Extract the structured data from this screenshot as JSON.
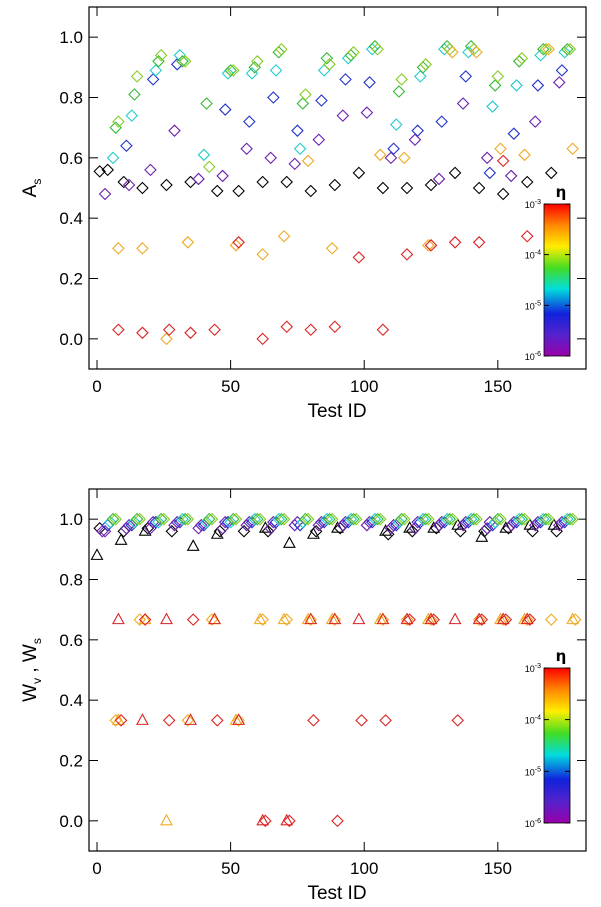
{
  "chart_data": [
    {
      "type": "scatter",
      "xlabel_main": "Test ID",
      "ylabel_main": "A",
      "ylabel_sub": "s",
      "xlim": [
        -3,
        183
      ],
      "ylim": [
        -0.1,
        1.1
      ],
      "xticks": [
        0,
        50,
        100,
        150
      ],
      "yticks": [
        0.0,
        0.2,
        0.4,
        0.6,
        0.8,
        1.0
      ],
      "colorbar": {
        "title": "η",
        "ticks": [
          {
            "base": "10",
            "exp": "-3",
            "frac": 0.0
          },
          {
            "base": "10",
            "exp": "-4",
            "frac": 0.333
          },
          {
            "base": "10",
            "exp": "-5",
            "frac": 0.667
          },
          {
            "base": "10",
            "exp": "-6",
            "frac": 1.0
          }
        ]
      },
      "series": [
        {
          "marker": "diamond",
          "color": "#000000",
          "x": [
            1,
            4,
            10,
            17,
            26,
            35,
            45,
            53,
            62,
            71,
            80,
            89,
            98,
            107,
            116,
            125,
            134,
            143,
            152,
            161,
            170
          ],
          "y": [
            0.555,
            0.56,
            0.52,
            0.5,
            0.51,
            0.52,
            0.49,
            0.49,
            0.52,
            0.52,
            0.49,
            0.51,
            0.55,
            0.5,
            0.5,
            0.51,
            0.55,
            0.5,
            0.48,
            0.52,
            0.55
          ]
        },
        {
          "marker": "diamond",
          "color": "#6a1fb0",
          "x": [
            3,
            12,
            20,
            29,
            38,
            47,
            56,
            65,
            74,
            83,
            92,
            101,
            110,
            119,
            128,
            137,
            146,
            155,
            164,
            173
          ],
          "y": [
            0.48,
            0.51,
            0.56,
            0.69,
            0.53,
            0.54,
            0.63,
            0.6,
            0.58,
            0.66,
            0.74,
            0.75,
            0.6,
            0.66,
            0.53,
            0.78,
            0.6,
            0.54,
            0.72,
            0.85
          ]
        },
        {
          "marker": "diamond",
          "color": "#2233cc",
          "x": [
            11,
            21,
            30,
            48,
            57,
            66,
            75,
            84,
            93,
            102,
            111,
            120,
            129,
            138,
            147,
            156,
            165,
            174
          ],
          "y": [
            0.64,
            0.86,
            0.91,
            0.76,
            0.72,
            0.8,
            0.69,
            0.79,
            0.86,
            0.85,
            0.63,
            0.69,
            0.72,
            0.87,
            0.55,
            0.68,
            0.84,
            0.89
          ]
        },
        {
          "marker": "diamond",
          "color": "#22cccc",
          "x": [
            6,
            13,
            22,
            31,
            40,
            49,
            58,
            67,
            76,
            85,
            94,
            103,
            112,
            121,
            130,
            139,
            148,
            157,
            166,
            175
          ],
          "y": [
            0.6,
            0.74,
            0.89,
            0.94,
            0.61,
            0.88,
            0.88,
            0.89,
            0.63,
            0.89,
            0.93,
            0.96,
            0.71,
            0.87,
            0.96,
            0.95,
            0.77,
            0.84,
            0.94,
            0.95
          ]
        },
        {
          "marker": "diamond",
          "color": "#33bb33",
          "x": [
            7,
            14,
            23,
            32,
            41,
            50,
            59,
            68,
            77,
            86,
            95,
            104,
            113,
            122,
            131,
            140,
            149,
            158,
            167,
            176
          ],
          "y": [
            0.7,
            0.81,
            0.92,
            0.92,
            0.78,
            0.89,
            0.9,
            0.95,
            0.78,
            0.93,
            0.94,
            0.97,
            0.82,
            0.9,
            0.97,
            0.97,
            0.84,
            0.92,
            0.96,
            0.96
          ]
        },
        {
          "marker": "diamond",
          "color": "#88cc22",
          "x": [
            8,
            15,
            24,
            33,
            42,
            51,
            60,
            69,
            78,
            87,
            96,
            105,
            114,
            123,
            132,
            141,
            150,
            159,
            168,
            177
          ],
          "y": [
            0.72,
            0.87,
            0.94,
            0.92,
            0.57,
            0.89,
            0.92,
            0.96,
            0.81,
            0.91,
            0.95,
            0.96,
            0.86,
            0.91,
            0.96,
            0.96,
            0.87,
            0.93,
            0.96,
            0.96
          ]
        },
        {
          "marker": "diamond",
          "color": "#eeaa22",
          "x": [
            8,
            17,
            26,
            34,
            52,
            62,
            70,
            79,
            88,
            106,
            115,
            124,
            133,
            142,
            151,
            160,
            169,
            178
          ],
          "y": [
            0.3,
            0.3,
            0.0,
            0.32,
            0.31,
            0.28,
            0.34,
            0.59,
            0.3,
            0.61,
            0.6,
            0.31,
            0.95,
            0.95,
            0.63,
            0.61,
            0.96,
            0.63
          ]
        },
        {
          "marker": "diamond",
          "color": "#dd2222",
          "x": [
            8,
            17,
            27,
            35,
            44,
            53,
            62,
            71,
            80,
            89,
            98,
            107,
            116,
            125,
            134,
            143,
            152,
            161
          ],
          "y": [
            0.03,
            0.02,
            0.03,
            0.02,
            0.03,
            0.32,
            0.0,
            0.04,
            0.03,
            0.04,
            0.27,
            0.03,
            0.28,
            0.31,
            0.32,
            0.32,
            0.59,
            0.34
          ]
        }
      ]
    },
    {
      "type": "scatter",
      "xlabel_main": "Test ID",
      "ylabel_main": "W",
      "ylabel_sub1": "v",
      "ylabel_mid": " , W",
      "ylabel_sub2": "s",
      "xlim": [
        -3,
        183
      ],
      "ylim": [
        -0.1,
        1.1
      ],
      "xticks": [
        0,
        50,
        100,
        150
      ],
      "yticks": [
        0.0,
        0.2,
        0.4,
        0.6,
        0.8,
        1.0
      ],
      "colorbar": {
        "title": "η",
        "ticks": [
          {
            "base": "10",
            "exp": "-3",
            "frac": 0.0
          },
          {
            "base": "10",
            "exp": "-4",
            "frac": 0.333
          },
          {
            "base": "10",
            "exp": "-5",
            "frac": 0.667
          },
          {
            "base": "10",
            "exp": "-6",
            "frac": 1.0
          }
        ]
      },
      "series": [
        {
          "marker": "triangle",
          "color": "#000000",
          "x": [
            0,
            9,
            18,
            36,
            45,
            63,
            72,
            81,
            90,
            108,
            117,
            126,
            135,
            144,
            153,
            162,
            171
          ],
          "y": [
            0.88,
            0.93,
            0.96,
            0.91,
            0.95,
            0.97,
            0.92,
            0.95,
            0.97,
            0.96,
            0.97,
            0.97,
            0.98,
            0.94,
            0.97,
            0.98,
            0.98
          ]
        },
        {
          "marker": "diamond",
          "color": "#000000",
          "x": [
            1,
            10,
            19,
            28,
            46,
            55,
            64,
            82,
            91,
            109,
            118,
            127,
            136,
            145,
            154,
            163,
            172
          ],
          "y": [
            0.97,
            0.96,
            0.97,
            0.96,
            0.96,
            0.96,
            0.96,
            0.96,
            0.97,
            0.95,
            0.96,
            0.97,
            0.96,
            0.96,
            0.97,
            0.96,
            0.96
          ]
        },
        {
          "marker": "diamond",
          "color": "#6a1fb0",
          "x": [
            2,
            3,
            11,
            12,
            20,
            21,
            29,
            30,
            38,
            39,
            47,
            48,
            56,
            57,
            65,
            66,
            74,
            75,
            83,
            84,
            92,
            93,
            101,
            102,
            110,
            111,
            119,
            120,
            128,
            129,
            137,
            138,
            146,
            147,
            155,
            156,
            164,
            165,
            173,
            174
          ],
          "y": [
            0.96,
            0.96,
            0.97,
            0.98,
            0.97,
            0.99,
            0.98,
            0.99,
            0.97,
            0.98,
            0.97,
            0.99,
            0.98,
            0.99,
            0.97,
            0.99,
            0.98,
            0.99,
            0.98,
            0.99,
            0.98,
            0.99,
            0.98,
            0.99,
            0.97,
            0.98,
            0.97,
            0.99,
            0.98,
            0.99,
            0.98,
            0.99,
            0.97,
            0.99,
            0.98,
            0.99,
            0.98,
            0.99,
            0.98,
            0.99
          ]
        },
        {
          "marker": "diamond",
          "color": "#2233cc",
          "x": [
            4,
            13,
            22,
            31,
            40,
            49,
            58,
            67,
            76,
            85,
            94,
            103,
            112,
            121,
            130,
            139,
            148,
            157,
            166,
            175
          ],
          "y": [
            0.98,
            0.98,
            0.99,
            0.99,
            0.98,
            0.99,
            0.99,
            0.99,
            0.98,
            0.99,
            0.99,
            0.99,
            0.98,
            0.99,
            0.99,
            0.99,
            0.98,
            0.99,
            0.99,
            0.99
          ]
        },
        {
          "marker": "diamond",
          "color": "#22cccc",
          "x": [
            5,
            14,
            23,
            32,
            41,
            50,
            59,
            68,
            77,
            86,
            95,
            104,
            113,
            122,
            131,
            140,
            149,
            158,
            167,
            176
          ],
          "y": [
            0.99,
            0.99,
            0.99,
            1.0,
            0.99,
            0.99,
            1.0,
            1.0,
            0.99,
            1.0,
            1.0,
            1.0,
            0.99,
            1.0,
            1.0,
            1.0,
            0.99,
            1.0,
            1.0,
            1.0
          ]
        },
        {
          "marker": "diamond",
          "color": "#33bb33",
          "x": [
            6,
            15,
            24,
            33,
            42,
            51,
            60,
            69,
            78,
            87,
            96,
            105,
            114,
            123,
            132,
            141,
            150,
            159,
            168,
            177
          ],
          "y": [
            1.0,
            1.0,
            1.0,
            1.0,
            1.0,
            1.0,
            1.0,
            1.0,
            1.0,
            1.0,
            1.0,
            1.0,
            1.0,
            1.0,
            1.0,
            1.0,
            1.0,
            1.0,
            1.0,
            1.0
          ]
        },
        {
          "marker": "diamond",
          "color": "#88cc22",
          "x": [
            7,
            16,
            25,
            34,
            43,
            52,
            61,
            70,
            79,
            88,
            97,
            106,
            115,
            124,
            133,
            142,
            151,
            160,
            169,
            178
          ],
          "y": [
            1.0,
            1.0,
            1.0,
            1.0,
            1.0,
            1.0,
            1.0,
            1.0,
            1.0,
            1.0,
            1.0,
            1.0,
            1.0,
            1.0,
            1.0,
            1.0,
            1.0,
            1.0,
            1.0,
            1.0
          ]
        },
        {
          "marker": "triangle",
          "color": "#eeaa22",
          "x": [
            8,
            18,
            26,
            44,
            52,
            61,
            70,
            79,
            88,
            106,
            124,
            151,
            160,
            178
          ],
          "y": [
            0.333,
            0.667,
            0.0,
            0.667,
            0.333,
            0.667,
            0.667,
            0.667,
            0.667,
            0.667,
            0.667,
            0.667,
            0.667,
            0.667
          ]
        },
        {
          "marker": "diamond",
          "color": "#eeaa22",
          "x": [
            7,
            16,
            34,
            43,
            53,
            62,
            71,
            80,
            89,
            107,
            116,
            125,
            143,
            152,
            161,
            170,
            179
          ],
          "y": [
            0.333,
            0.667,
            0.333,
            0.667,
            0.333,
            0.667,
            0.667,
            0.667,
            0.667,
            0.667,
            0.667,
            0.667,
            0.667,
            0.667,
            0.667,
            0.667,
            0.667
          ]
        },
        {
          "marker": "triangle",
          "color": "#dd2222",
          "x": [
            8,
            17,
            26,
            35,
            44,
            53,
            62,
            71,
            80,
            89,
            98,
            107,
            116,
            125,
            134,
            143,
            152,
            161
          ],
          "y": [
            0.667,
            0.333,
            0.667,
            0.333,
            0.667,
            0.333,
            0.0,
            0.0,
            0.667,
            0.667,
            0.667,
            0.667,
            0.667,
            0.667,
            0.667,
            0.667,
            0.667,
            0.667
          ]
        },
        {
          "marker": "diamond",
          "color": "#dd2222",
          "x": [
            9,
            18,
            27,
            36,
            45,
            63,
            72,
            81,
            90,
            99,
            108,
            117,
            126,
            135,
            144,
            153,
            162
          ],
          "y": [
            0.333,
            0.667,
            0.333,
            0.667,
            0.333,
            0.0,
            0.0,
            0.333,
            0.0,
            0.333,
            0.333,
            0.667,
            0.667,
            0.333,
            0.667,
            0.667,
            0.667
          ]
        }
      ]
    }
  ]
}
